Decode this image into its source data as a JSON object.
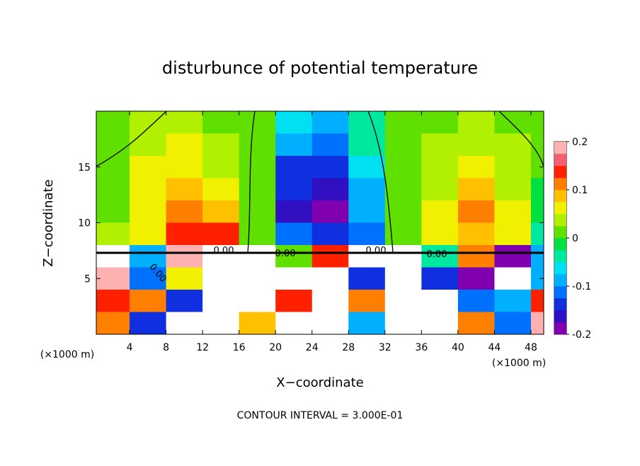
{
  "chart_data": {
    "type": "heatmap",
    "title": "disturbunce of potential temperature",
    "x_label": "X−coordinate",
    "y_label": "Z−coordinate",
    "x_unit_left": "(×1000 m)",
    "x_unit_right": "(×1000 m)",
    "footnote": "CONTOUR INTERVAL = 3.000E-01",
    "contour_labels": [
      "0.00",
      "0.00",
      "0.00",
      "0.00",
      "0.00"
    ],
    "x": [
      2,
      6,
      10,
      14,
      18,
      22,
      26,
      30,
      34,
      38,
      42,
      46,
      50
    ],
    "y": [
      19,
      17,
      15,
      13,
      11,
      9,
      7,
      5,
      3,
      1
    ],
    "cell_width": 4,
    "cell_height": 2,
    "z": [
      [
        0.02,
        0.03,
        0.03,
        0.02,
        0.0,
        -0.06,
        -0.08,
        -0.03,
        0.01,
        0.02,
        0.03,
        0.02,
        0.01
      ],
      [
        0.02,
        0.04,
        0.05,
        0.03,
        0.0,
        -0.1,
        -0.11,
        -0.05,
        0.01,
        0.03,
        0.04,
        0.03,
        0.0
      ],
      [
        0.02,
        0.05,
        0.07,
        0.04,
        0.0,
        -0.13,
        -0.14,
        -0.06,
        0.0,
        0.04,
        0.06,
        0.03,
        0.0
      ],
      [
        0.02,
        0.05,
        0.08,
        0.05,
        0.0,
        -0.15,
        -0.17,
        -0.08,
        0.0,
        0.04,
        0.08,
        0.03,
        -0.01
      ],
      [
        0.02,
        0.06,
        0.11,
        0.09,
        0.0,
        -0.17,
        -0.19,
        -0.1,
        0.0,
        0.05,
        0.1,
        0.05,
        -0.02
      ],
      [
        0.03,
        0.07,
        0.15,
        0.14,
        0.02,
        -0.12,
        -0.14,
        -0.12,
        0.0,
        0.06,
        0.09,
        0.06,
        -0.03
      ],
      [
        0.3,
        -0.1,
        0.2,
        0.3,
        -0.3,
        0.0,
        0.15,
        0.3,
        0.3,
        -0.05,
        0.1,
        -0.18,
        -0.1
      ],
      [
        0.18,
        -0.12,
        0.05,
        -0.3,
        0.3,
        0.3,
        0.3,
        -0.15,
        0.3,
        -0.15,
        -0.18,
        0.3,
        -0.1
      ],
      [
        0.15,
        0.1,
        -0.15,
        0.3,
        0.3,
        0.15,
        0.3,
        0.1,
        0.3,
        0.3,
        -0.12,
        -0.1,
        0.15
      ],
      [
        0.12,
        -0.15,
        0.3,
        0.3,
        0.08,
        0.3,
        0.3,
        -0.1,
        0.3,
        0.3,
        0.12,
        -0.12,
        0.2
      ]
    ],
    "xlim": [
      0.35,
      49.4
    ],
    "ylim": [
      0,
      20
    ],
    "xticks": [
      4,
      8,
      12,
      16,
      20,
      24,
      28,
      32,
      36,
      40,
      44,
      48
    ],
    "yticks": [
      5,
      10,
      15
    ],
    "clim": [
      -0.2,
      0.2
    ],
    "cticks": [
      0.2,
      0.1,
      0,
      -0.1,
      -0.2
    ],
    "colorscale": [
      "#8000b0",
      "#3010c0",
      "#1030e0",
      "#0070ff",
      "#00b0ff",
      "#00e0f0",
      "#00e8a0",
      "#00e040",
      "#60e000",
      "#b0f000",
      "#f0f000",
      "#ffc000",
      "#ff8000",
      "#ff2000",
      "#f06070",
      "#ffb0b0"
    ],
    "out_of_range_color": "#ffffff"
  }
}
